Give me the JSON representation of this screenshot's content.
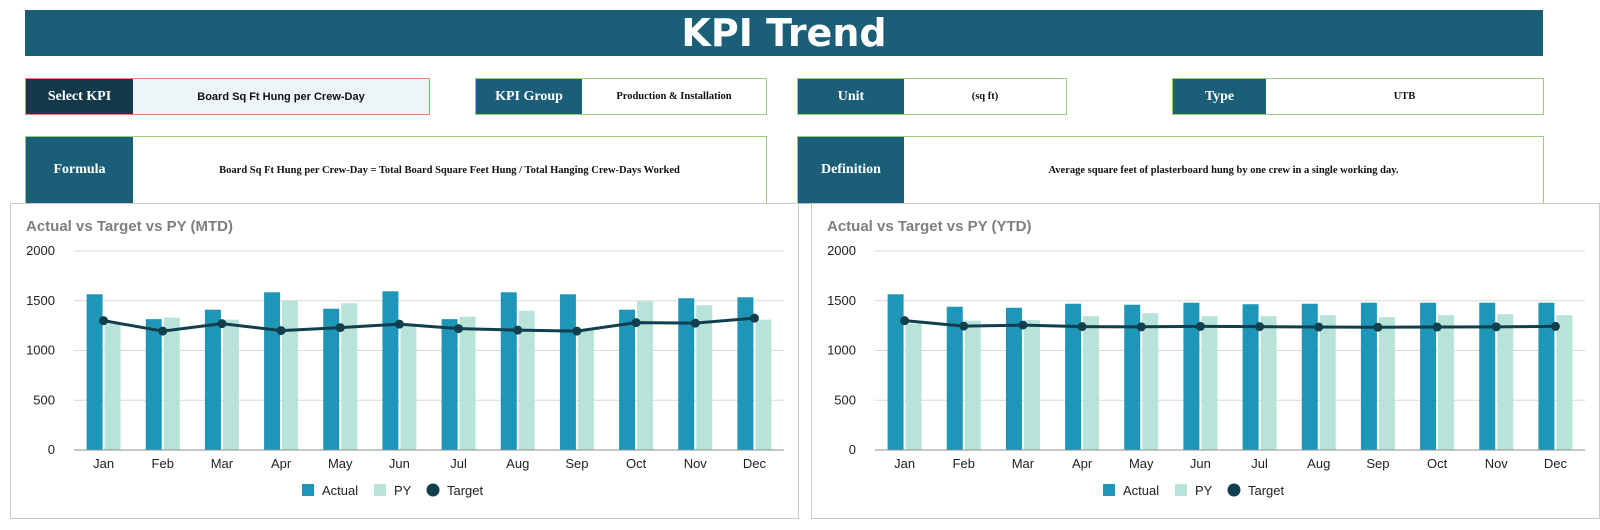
{
  "header": {
    "title": "KPI Trend"
  },
  "selectors": {
    "select_kpi": {
      "label": "Select KPI",
      "value": "Board Sq Ft Hung per Crew-Day"
    },
    "kpi_group": {
      "label": "KPI Group",
      "value": "Production & Installation"
    },
    "unit": {
      "label": "Unit",
      "value": "(sq ft)"
    },
    "type": {
      "label": "Type",
      "value": "UTB"
    }
  },
  "formula": {
    "label": "Formula",
    "value": "Board Sq Ft Hung per Crew-Day = Total Board Square Feet Hung / Total Hanging Crew-Days Worked"
  },
  "definition": {
    "label": "Definition",
    "value": "Average square feet of plasterboard hung by one crew in a single working day."
  },
  "colors": {
    "header": "#1a5e78",
    "actual": "#1e96b8",
    "py": "#b7e3d9",
    "target": "#123f4e",
    "select_label": "#123a4a"
  },
  "chart_data": [
    {
      "type": "bar",
      "title": "Actual vs Target vs PY (MTD)",
      "categories": [
        "Jan",
        "Feb",
        "Mar",
        "Apr",
        "May",
        "Jun",
        "Jul",
        "Aug",
        "Sep",
        "Oct",
        "Nov",
        "Dec"
      ],
      "ylim": [
        0,
        2000
      ],
      "yticks": [
        0,
        500,
        1000,
        1500,
        2000
      ],
      "grid": true,
      "legend_position": "bottom",
      "series": [
        {
          "name": "Actual",
          "type": "bar",
          "color": "#1e96b8",
          "values": [
            1565,
            1315,
            1410,
            1585,
            1420,
            1595,
            1315,
            1585,
            1565,
            1410,
            1525,
            1535
          ]
        },
        {
          "name": "PY",
          "type": "bar",
          "color": "#b7e3d9",
          "values": [
            1270,
            1330,
            1310,
            1500,
            1475,
            1270,
            1340,
            1400,
            1205,
            1495,
            1455,
            1310
          ]
        },
        {
          "name": "Target",
          "type": "line",
          "color": "#123f4e",
          "values": [
            1300,
            1195,
            1270,
            1200,
            1230,
            1265,
            1220,
            1205,
            1195,
            1280,
            1275,
            1325
          ]
        }
      ]
    },
    {
      "type": "bar",
      "title": "Actual vs Target vs PY (YTD)",
      "categories": [
        "Jan",
        "Feb",
        "Mar",
        "Apr",
        "May",
        "Jun",
        "Jul",
        "Aug",
        "Sep",
        "Oct",
        "Nov",
        "Dec"
      ],
      "ylim": [
        0,
        2000
      ],
      "yticks": [
        0,
        500,
        1000,
        1500,
        2000
      ],
      "grid": true,
      "legend_position": "bottom",
      "series": [
        {
          "name": "Actual",
          "type": "bar",
          "color": "#1e96b8",
          "values": [
            1565,
            1440,
            1430,
            1470,
            1460,
            1480,
            1465,
            1470,
            1480,
            1480,
            1480,
            1480
          ]
        },
        {
          "name": "PY",
          "type": "bar",
          "color": "#b7e3d9",
          "values": [
            1270,
            1300,
            1305,
            1345,
            1375,
            1345,
            1345,
            1355,
            1335,
            1355,
            1365,
            1355
          ]
        },
        {
          "name": "Target",
          "type": "line",
          "color": "#123f4e",
          "values": [
            1300,
            1245,
            1255,
            1240,
            1238,
            1242,
            1240,
            1236,
            1234,
            1236,
            1238,
            1242
          ]
        }
      ]
    }
  ]
}
